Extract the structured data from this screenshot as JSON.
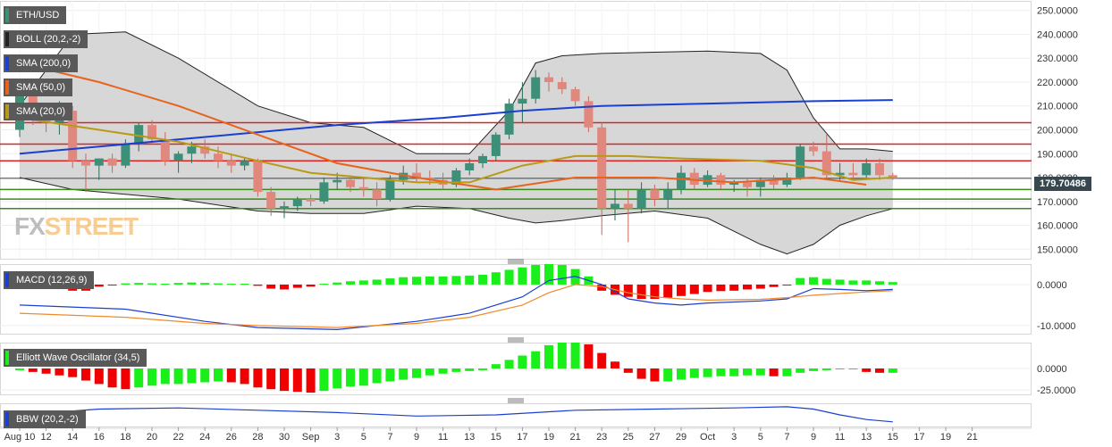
{
  "legend": {
    "symbol": "ETH/USD",
    "boll": "BOLL (20,2,-2)",
    "sma200": "SMA (200,0)",
    "sma50": "SMA (50,0)",
    "sma20": "SMA (20,0)",
    "macd": "MACD (12,26,9)",
    "ewo": "Elliott Wave Oscillator (34,5)",
    "bbw": "BBW (20,2,-2)"
  },
  "logo": {
    "part1": "FX",
    "part2": "STREET"
  },
  "last_price": "179.70486",
  "colors": {
    "up": "#3d8f78",
    "down": "#e0887d",
    "band": "#d3d3d3",
    "sma200": "#1a3fd1",
    "sma50": "#e8631c",
    "sma20": "#b89a16",
    "hist_up": "#19f019",
    "hist_down": "#f00000",
    "macd_line": "#1a3fd1",
    "signal_line": "#f08a2a",
    "resistance": "#e32020",
    "support": "#3b8a1c"
  },
  "chart_data": [
    {
      "type": "candlestick",
      "title": "ETH/USD",
      "ylim": [
        146,
        254
      ],
      "yticks": [
        "250.0000",
        "240.0000",
        "230.0000",
        "220.0000",
        "210.0000",
        "200.0000",
        "190.0000",
        "180.0000",
        "170.0000",
        "160.0000",
        "150.0000"
      ],
      "x_ticks": [
        "Aug 10",
        "12",
        "14",
        "16",
        "18",
        "20",
        "22",
        "24",
        "26",
        "28",
        "30",
        "Sep",
        "3",
        "5",
        "7",
        "9",
        "11",
        "13",
        "15",
        "17",
        "19",
        "21",
        "23",
        "25",
        "27",
        "29",
        "Oct",
        "3",
        "5",
        "7",
        "9",
        "11",
        "13",
        "15",
        "17",
        "19",
        "21"
      ],
      "x_range_days": [
        0,
        72
      ],
      "candles": [
        {
          "d": 0,
          "o": 200,
          "h": 216,
          "l": 197,
          "c": 214
        },
        {
          "d": 1,
          "o": 214,
          "h": 219,
          "l": 202,
          "c": 206
        },
        {
          "d": 2,
          "o": 206,
          "h": 209,
          "l": 199,
          "c": 203
        },
        {
          "d": 3,
          "o": 203,
          "h": 212,
          "l": 198,
          "c": 208
        },
        {
          "d": 4,
          "o": 208,
          "h": 210,
          "l": 184,
          "c": 187
        },
        {
          "d": 5,
          "o": 187,
          "h": 190,
          "l": 174,
          "c": 185
        },
        {
          "d": 6,
          "o": 185,
          "h": 188,
          "l": 179,
          "c": 188
        },
        {
          "d": 7,
          "o": 188,
          "h": 190,
          "l": 182,
          "c": 185
        },
        {
          "d": 8,
          "o": 185,
          "h": 196,
          "l": 184,
          "c": 194
        },
        {
          "d": 9,
          "o": 194,
          "h": 203,
          "l": 191,
          "c": 202
        },
        {
          "d": 10,
          "o": 202,
          "h": 204,
          "l": 194,
          "c": 196
        },
        {
          "d": 11,
          "o": 196,
          "h": 199,
          "l": 185,
          "c": 187
        },
        {
          "d": 12,
          "o": 187,
          "h": 191,
          "l": 182,
          "c": 190
        },
        {
          "d": 13,
          "o": 190,
          "h": 195,
          "l": 186,
          "c": 193
        },
        {
          "d": 14,
          "o": 193,
          "h": 196,
          "l": 188,
          "c": 190
        },
        {
          "d": 15,
          "o": 190,
          "h": 193,
          "l": 184,
          "c": 187
        },
        {
          "d": 16,
          "o": 187,
          "h": 190,
          "l": 182,
          "c": 185
        },
        {
          "d": 17,
          "o": 185,
          "h": 188,
          "l": 183,
          "c": 187
        },
        {
          "d": 18,
          "o": 187,
          "h": 188,
          "l": 172,
          "c": 174
        },
        {
          "d": 19,
          "o": 174,
          "h": 176,
          "l": 164,
          "c": 167
        },
        {
          "d": 20,
          "o": 167,
          "h": 170,
          "l": 163,
          "c": 168
        },
        {
          "d": 21,
          "o": 168,
          "h": 172,
          "l": 166,
          "c": 171
        },
        {
          "d": 22,
          "o": 171,
          "h": 173,
          "l": 168,
          "c": 170
        },
        {
          "d": 23,
          "o": 170,
          "h": 180,
          "l": 169,
          "c": 178
        },
        {
          "d": 24,
          "o": 178,
          "h": 182,
          "l": 175,
          "c": 179
        },
        {
          "d": 25,
          "o": 179,
          "h": 181,
          "l": 174,
          "c": 176
        },
        {
          "d": 26,
          "o": 176,
          "h": 180,
          "l": 172,
          "c": 175
        },
        {
          "d": 27,
          "o": 175,
          "h": 178,
          "l": 168,
          "c": 171
        },
        {
          "d": 28,
          "o": 171,
          "h": 181,
          "l": 170,
          "c": 179
        },
        {
          "d": 29,
          "o": 179,
          "h": 185,
          "l": 177,
          "c": 182
        },
        {
          "d": 30,
          "o": 182,
          "h": 186,
          "l": 178,
          "c": 180
        },
        {
          "d": 31,
          "o": 180,
          "h": 183,
          "l": 177,
          "c": 179
        },
        {
          "d": 32,
          "o": 179,
          "h": 182,
          "l": 175,
          "c": 177
        },
        {
          "d": 33,
          "o": 177,
          "h": 184,
          "l": 176,
          "c": 183
        },
        {
          "d": 34,
          "o": 183,
          "h": 188,
          "l": 181,
          "c": 186
        },
        {
          "d": 35,
          "o": 186,
          "h": 190,
          "l": 184,
          "c": 189
        },
        {
          "d": 36,
          "o": 189,
          "h": 199,
          "l": 187,
          "c": 198
        },
        {
          "d": 37,
          "o": 198,
          "h": 213,
          "l": 196,
          "c": 211
        },
        {
          "d": 38,
          "o": 211,
          "h": 220,
          "l": 203,
          "c": 213
        },
        {
          "d": 39,
          "o": 213,
          "h": 225,
          "l": 211,
          "c": 222
        },
        {
          "d": 40,
          "o": 222,
          "h": 224,
          "l": 216,
          "c": 220
        },
        {
          "d": 41,
          "o": 220,
          "h": 222,
          "l": 215,
          "c": 217
        },
        {
          "d": 42,
          "o": 217,
          "h": 218,
          "l": 210,
          "c": 212
        },
        {
          "d": 43,
          "o": 212,
          "h": 214,
          "l": 199,
          "c": 201
        },
        {
          "d": 44,
          "o": 201,
          "h": 203,
          "l": 156,
          "c": 167
        },
        {
          "d": 45,
          "o": 167,
          "h": 175,
          "l": 162,
          "c": 169
        },
        {
          "d": 46,
          "o": 169,
          "h": 175,
          "l": 153,
          "c": 167
        },
        {
          "d": 47,
          "o": 167,
          "h": 178,
          "l": 165,
          "c": 175
        },
        {
          "d": 48,
          "o": 175,
          "h": 177,
          "l": 168,
          "c": 171
        },
        {
          "d": 49,
          "o": 171,
          "h": 178,
          "l": 167,
          "c": 175
        },
        {
          "d": 50,
          "o": 175,
          "h": 185,
          "l": 173,
          "c": 182
        },
        {
          "d": 51,
          "o": 182,
          "h": 184,
          "l": 175,
          "c": 177
        },
        {
          "d": 52,
          "o": 177,
          "h": 183,
          "l": 176,
          "c": 181
        },
        {
          "d": 53,
          "o": 181,
          "h": 182,
          "l": 175,
          "c": 177
        },
        {
          "d": 54,
          "o": 177,
          "h": 179,
          "l": 174,
          "c": 178
        },
        {
          "d": 55,
          "o": 178,
          "h": 180,
          "l": 172,
          "c": 176
        },
        {
          "d": 56,
          "o": 176,
          "h": 180,
          "l": 172,
          "c": 179
        },
        {
          "d": 57,
          "o": 179,
          "h": 181,
          "l": 175,
          "c": 177
        },
        {
          "d": 58,
          "o": 177,
          "h": 182,
          "l": 176,
          "c": 180
        },
        {
          "d": 59,
          "o": 180,
          "h": 194,
          "l": 179,
          "c": 193
        },
        {
          "d": 60,
          "o": 193,
          "h": 195,
          "l": 189,
          "c": 191
        },
        {
          "d": 61,
          "o": 191,
          "h": 198,
          "l": 179,
          "c": 181
        },
        {
          "d": 62,
          "o": 181,
          "h": 186,
          "l": 179,
          "c": 182
        },
        {
          "d": 63,
          "o": 182,
          "h": 186,
          "l": 179,
          "c": 181
        },
        {
          "d": 64,
          "o": 181,
          "h": 188,
          "l": 180,
          "c": 186
        },
        {
          "d": 65,
          "o": 186,
          "h": 188,
          "l": 179,
          "c": 181
        },
        {
          "d": 66,
          "o": 181,
          "h": 182,
          "l": 179,
          "c": 179.7
        }
      ],
      "series": [
        {
          "name": "SMA (200,0)",
          "x": [
            0,
            16,
            24,
            32,
            38,
            44,
            52,
            60,
            66
          ],
          "y": [
            190,
            198,
            202,
            205,
            208,
            210,
            211,
            212,
            212.5
          ]
        },
        {
          "name": "SMA (50,0)",
          "x": [
            0,
            6,
            12,
            18,
            24,
            30,
            36,
            42,
            48,
            54,
            60,
            64
          ],
          "y": [
            228,
            220,
            210,
            198,
            186,
            180,
            175,
            180,
            180,
            178,
            180,
            177
          ]
        },
        {
          "name": "SMA (20,0)",
          "x": [
            0,
            6,
            12,
            18,
            22,
            26,
            30,
            34,
            38,
            40,
            42,
            46,
            50,
            56,
            60,
            63,
            66
          ],
          "y": [
            205,
            200,
            195,
            187,
            182,
            180,
            178,
            178,
            185,
            187,
            189,
            189,
            188,
            187,
            184,
            179,
            180
          ]
        },
        {
          "name": "BOLL upper",
          "x": [
            0,
            4,
            8,
            12,
            18,
            22,
            26,
            30,
            34,
            37,
            39,
            41,
            44,
            48,
            52,
            56,
            58,
            60,
            62,
            64,
            66
          ],
          "y": [
            210,
            240,
            241,
            230,
            210,
            203,
            201,
            190,
            190,
            208,
            228,
            231,
            232,
            232.5,
            233,
            232,
            225,
            205,
            192,
            192,
            191
          ]
        },
        {
          "name": "BOLL lower",
          "x": [
            0,
            4,
            8,
            12,
            18,
            22,
            26,
            30,
            34,
            37,
            39,
            41,
            44,
            48,
            52,
            56,
            58,
            60,
            62,
            64,
            66
          ],
          "y": [
            180,
            175,
            173,
            171,
            166,
            165,
            165,
            168,
            167,
            163,
            161,
            162,
            164,
            166,
            163,
            152,
            148,
            152,
            160,
            164,
            167
          ]
        }
      ],
      "hlines_resistance": [
        203,
        194,
        187
      ],
      "hlines_support": [
        175,
        171,
        167
      ]
    },
    {
      "type": "bar",
      "title": "MACD (12,26,9)",
      "ylim": [
        -12,
        5
      ],
      "yticks": [
        "0.0000",
        "-10.0000"
      ],
      "histogram": [
        2.0,
        1.5,
        0.5,
        -1.0,
        -1.5,
        -1.5,
        -0.5,
        -0.2,
        0.3,
        0.4,
        0.3,
        0.2,
        0.4,
        0.5,
        0.4,
        0.3,
        0.2,
        0.2,
        -0.3,
        -1.0,
        -1.2,
        -0.8,
        -0.5,
        0.2,
        0.5,
        0.8,
        1.0,
        1.2,
        1.5,
        1.8,
        1.9,
        2.0,
        2.0,
        2.1,
        2.2,
        2.4,
        3.0,
        3.6,
        4.2,
        4.8,
        5.0,
        4.8,
        3.8,
        2.0,
        -1.5,
        -2.5,
        -3.0,
        -3.5,
        -3.5,
        -3.2,
        -2.8,
        -2.3,
        -1.8,
        -1.6,
        -1.5,
        -1.2,
        -1.0,
        -0.6,
        -0.2,
        1.6,
        1.8,
        1.4,
        1.2,
        1.0,
        1.0,
        0.8,
        0.6
      ],
      "series": [
        {
          "name": "MACD",
          "x": [
            0,
            8,
            14,
            18,
            24,
            30,
            34,
            38,
            40,
            42,
            44,
            46,
            48,
            50,
            52,
            56,
            58,
            60,
            62,
            64,
            66
          ],
          "y": [
            -5,
            -6,
            -9,
            -10.5,
            -11,
            -9,
            -7,
            -3,
            1,
            2,
            0,
            -3.5,
            -4.5,
            -5,
            -4.5,
            -4,
            -3.5,
            -1,
            -1.2,
            -1.5,
            -1.2
          ]
        },
        {
          "name": "Signal",
          "x": [
            0,
            8,
            14,
            18,
            24,
            30,
            34,
            38,
            40,
            42,
            44,
            46,
            48,
            50,
            52,
            56,
            58,
            60,
            62,
            64,
            66
          ],
          "y": [
            -7,
            -8,
            -9.5,
            -10,
            -10.5,
            -9.5,
            -8,
            -5,
            -2,
            0,
            -0.5,
            -2,
            -3,
            -3.5,
            -3.8,
            -3.6,
            -3.2,
            -2.6,
            -2.2,
            -1.8,
            -1.5
          ]
        }
      ]
    },
    {
      "type": "bar",
      "title": "Elliott Wave Oscillator (34,5)",
      "ylim": [
        -30,
        30
      ],
      "yticks": [
        "0.0000",
        "-25.0000"
      ],
      "histogram": [
        -2,
        -4,
        -6,
        -8,
        -10,
        -14,
        -18,
        -22,
        -24,
        -22,
        -20,
        -18,
        -18,
        -17,
        -16,
        -15,
        -16,
        -18,
        -22,
        -24,
        -26,
        -27,
        -28,
        -26,
        -23,
        -21,
        -20,
        -17,
        -15,
        -13,
        -11,
        -8,
        -6,
        -4,
        -3,
        -2,
        5,
        10,
        15,
        20,
        27,
        30,
        30,
        28,
        18,
        8,
        -5,
        -12,
        -15,
        -15,
        -13,
        -11,
        -10,
        -9,
        -9,
        -8,
        -8,
        -9,
        -9,
        -5,
        -3,
        -2,
        -1,
        -1,
        -4,
        -5,
        -5
      ]
    },
    {
      "type": "line",
      "title": "BBW (20,2,-2)",
      "series": [
        {
          "name": "BBW",
          "x": [
            0,
            6,
            12,
            18,
            24,
            30,
            36,
            42,
            48,
            54,
            58,
            60,
            62,
            64,
            66
          ],
          "y": [
            0.12,
            0.17,
            0.18,
            0.16,
            0.14,
            0.11,
            0.12,
            0.16,
            0.17,
            0.18,
            0.19,
            0.17,
            0.12,
            0.08,
            0.06
          ]
        }
      ]
    }
  ]
}
